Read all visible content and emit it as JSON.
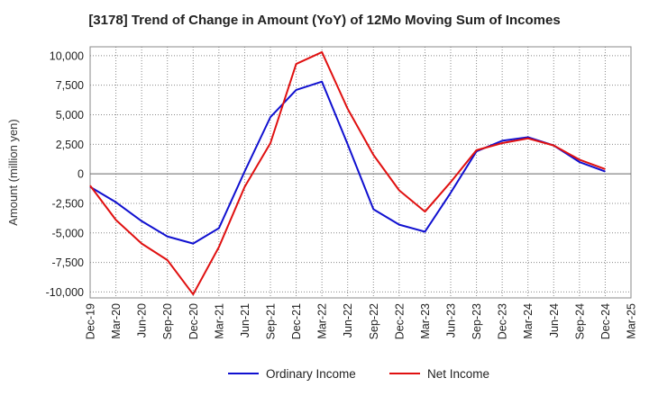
{
  "chart_data": {
    "type": "line",
    "title": "[3178]  Trend of Change in Amount (YoY) of 12Mo Moving Sum of Incomes",
    "ylabel": "Amount (million yen)",
    "xlabel": "",
    "ylim": [
      -10500,
      10750
    ],
    "yticks": [
      10000,
      7500,
      5000,
      2500,
      0,
      -2500,
      -5000,
      -7500,
      -10000
    ],
    "ytick_labels": [
      "10,000",
      "7,500",
      "5,000",
      "2,500",
      "0",
      "-2,500",
      "-5,000",
      "-7,500",
      "-10,000"
    ],
    "categories": [
      "Dec-19",
      "Mar-20",
      "Jun-20",
      "Sep-20",
      "Dec-20",
      "Mar-21",
      "Jun-21",
      "Sep-21",
      "Dec-21",
      "Mar-22",
      "Jun-22",
      "Sep-22",
      "Dec-22",
      "Mar-23",
      "Jun-23",
      "Sep-23",
      "Dec-23",
      "Mar-24",
      "Jun-24",
      "Sep-24",
      "Dec-24",
      "Mar-25"
    ],
    "grid": true,
    "legend_position": "bottom",
    "series": [
      {
        "name": "Ordinary Income",
        "color": "#1010d0",
        "values": [
          -1100,
          -2400,
          -4000,
          -5300,
          -5900,
          -4600,
          200,
          4800,
          7100,
          7800,
          2500,
          -3000,
          -4300,
          -4900,
          -1600,
          1900,
          2800,
          3100,
          2400,
          1000,
          200,
          null
        ]
      },
      {
        "name": "Net Income",
        "color": "#e01010",
        "values": [
          -1000,
          -3900,
          -5900,
          -7300,
          -10200,
          -6200,
          -1100,
          2600,
          9300,
          10300,
          5500,
          1600,
          -1400,
          -3200,
          -700,
          2000,
          2600,
          3000,
          2400,
          1200,
          400,
          null
        ]
      }
    ]
  }
}
